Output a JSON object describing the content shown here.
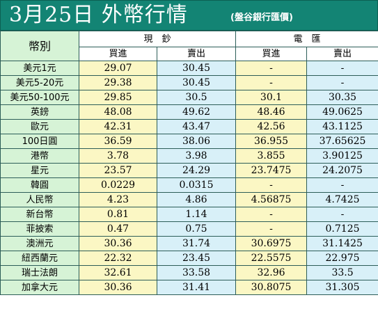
{
  "header": {
    "title": "3月25日 外幣行情",
    "source": "(盤谷銀行匯價)"
  },
  "columns": {
    "currency": "幣別",
    "cash": "現　鈔",
    "wire": "電　匯",
    "buy": "買進",
    "sell": "賣出"
  },
  "rows": [
    {
      "name": "美元1元",
      "cash_buy": "29.07",
      "cash_sell": "30.45",
      "wire_buy": "-",
      "wire_sell": "-"
    },
    {
      "name": "美元5-20元",
      "cash_buy": "29.38",
      "cash_sell": "30.45",
      "wire_buy": "-",
      "wire_sell": "-"
    },
    {
      "name": "美元50-100元",
      "cash_buy": "29.85",
      "cash_sell": "30.5",
      "wire_buy": "30.1",
      "wire_sell": "30.35"
    },
    {
      "name": "英鎊",
      "cash_buy": "48.08",
      "cash_sell": "49.62",
      "wire_buy": "48.46",
      "wire_sell": "49.0625"
    },
    {
      "name": "歐元",
      "cash_buy": "42.31",
      "cash_sell": "43.47",
      "wire_buy": "42.56",
      "wire_sell": "43.1125"
    },
    {
      "name": "100日圓",
      "cash_buy": "36.59",
      "cash_sell": "38.06",
      "wire_buy": "36.955",
      "wire_sell": "37.65625"
    },
    {
      "name": "港幣",
      "cash_buy": "3.78",
      "cash_sell": "3.98",
      "wire_buy": "3.855",
      "wire_sell": "3.90125"
    },
    {
      "name": "星元",
      "cash_buy": "23.57",
      "cash_sell": "24.29",
      "wire_buy": "23.7475",
      "wire_sell": "24.2075"
    },
    {
      "name": "韓圓",
      "cash_buy": "0.0229",
      "cash_sell": "0.0315",
      "wire_buy": "-",
      "wire_sell": "-"
    },
    {
      "name": "人民幣",
      "cash_buy": "4.23",
      "cash_sell": "4.86",
      "wire_buy": "4.56875",
      "wire_sell": "4.7425"
    },
    {
      "name": "新台幣",
      "cash_buy": "0.81",
      "cash_sell": "1.14",
      "wire_buy": "-",
      "wire_sell": "-"
    },
    {
      "name": "菲披索",
      "cash_buy": "0.47",
      "cash_sell": "0.75",
      "wire_buy": "-",
      "wire_sell": "0.7125"
    },
    {
      "name": "澳洲元",
      "cash_buy": "30.36",
      "cash_sell": "31.74",
      "wire_buy": "30.6975",
      "wire_sell": "31.1425"
    },
    {
      "name": "紐西蘭元",
      "cash_buy": "22.32",
      "cash_sell": "23.45",
      "wire_buy": "22.5575",
      "wire_sell": "22.975"
    },
    {
      "name": "瑞士法朗",
      "cash_buy": "32.61",
      "cash_sell": "33.58",
      "wire_buy": "32.96",
      "wire_sell": "33.5"
    },
    {
      "name": "加拿大元",
      "cash_buy": "30.36",
      "cash_sell": "31.41",
      "wire_buy": "30.8075",
      "wire_sell": "31.305"
    }
  ]
}
